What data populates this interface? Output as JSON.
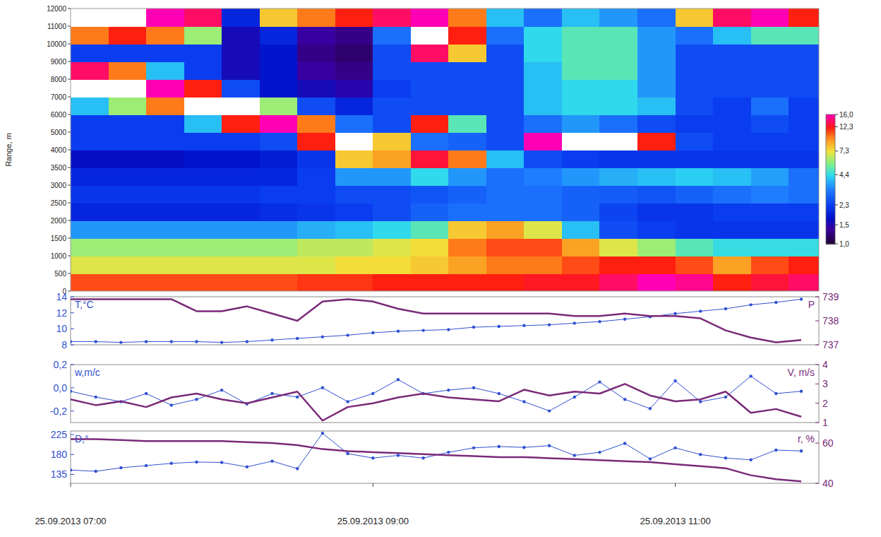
{
  "chart_data": [
    {
      "type": "heatmap",
      "y_label": "Range, m",
      "x_bins": [
        420,
        435,
        450,
        465,
        480,
        495,
        510,
        525,
        540,
        555,
        570,
        585,
        600,
        615,
        630,
        645,
        660,
        675,
        690,
        705,
        720
      ],
      "y_bins": [
        0,
        500,
        1000,
        1500,
        2000,
        2500,
        3000,
        3500,
        4000,
        5000,
        6000,
        7000,
        8000,
        9000,
        10000,
        11000,
        12000
      ],
      "z": [
        [
          11,
          11,
          11,
          11,
          11,
          11,
          11.5,
          11.5,
          12,
          12,
          12,
          12,
          12.5,
          12.5,
          14,
          16,
          15,
          12,
          13,
          14
        ],
        [
          7,
          7,
          7,
          7,
          7,
          7,
          7,
          7.5,
          7.5,
          8,
          9,
          10,
          10,
          11,
          12,
          12,
          11,
          9,
          11,
          12
        ],
        [
          6,
          6,
          6,
          6,
          6,
          6,
          6.5,
          6.5,
          7,
          7.5,
          10,
          11,
          11,
          9,
          7,
          6,
          5,
          4.5,
          4.5,
          4.5
        ],
        [
          3.5,
          3.5,
          3.5,
          3.5,
          3.5,
          3.5,
          3.8,
          4,
          4.4,
          5,
          8,
          9,
          7,
          4,
          2.5,
          2.3,
          2.2,
          2.2,
          2.2,
          2.2
        ],
        [
          2,
          2,
          2,
          2,
          2,
          2.1,
          2.2,
          2.3,
          2.5,
          2.8,
          3,
          3,
          3,
          2.8,
          2.4,
          2.2,
          2.2,
          2.3,
          2.3,
          2.3
        ],
        [
          2.2,
          2.2,
          2.2,
          2.2,
          2.2,
          2.3,
          2.3,
          2.5,
          2.5,
          2.6,
          2.8,
          3,
          3,
          2.8,
          2.7,
          2.6,
          2.8,
          3,
          3.2,
          3
        ],
        [
          2,
          2,
          2,
          2,
          2,
          2,
          2.3,
          3.5,
          3.5,
          4.4,
          3.5,
          3,
          3.2,
          3.5,
          3.8,
          4,
          4.2,
          4,
          3.6,
          3
        ],
        [
          1.7,
          1.7,
          1.7,
          1.8,
          1.8,
          1.9,
          2.2,
          8,
          9,
          13,
          10,
          4,
          2.5,
          2.3,
          2.2,
          2.2,
          2.2,
          2.2,
          2.2,
          2.2
        ],
        [
          2.3,
          2.3,
          2.3,
          2.3,
          2.3,
          2.5,
          12,
          17,
          8,
          3,
          2.8,
          2.5,
          16,
          17,
          17,
          12,
          2.5,
          2.3,
          2.3,
          2.3
        ],
        [
          2.3,
          2.3,
          2.3,
          4,
          12,
          16,
          10,
          3,
          2.5,
          12,
          5,
          2.5,
          3,
          3.5,
          3,
          2.5,
          2.3,
          2.3,
          2.5,
          2.3
        ],
        [
          4,
          6,
          10,
          17,
          17,
          6,
          2.5,
          2,
          2.5,
          2.5,
          2.5,
          2.5,
          4,
          4.4,
          4.4,
          4,
          2.5,
          2.3,
          3,
          2.3
        ],
        [
          17,
          17,
          16,
          12,
          2.5,
          1.8,
          1.6,
          1.5,
          2.3,
          2.5,
          2.5,
          2.5,
          4,
          4.4,
          4.4,
          3.5,
          2.5,
          2.5,
          2.5,
          2.5
        ],
        [
          14,
          10,
          4,
          2.3,
          1.6,
          1.8,
          1.4,
          1.3,
          2.5,
          2.5,
          2.5,
          2.5,
          4,
          5,
          5,
          3.5,
          2.5,
          2.5,
          2.5,
          2.5
        ],
        [
          2.3,
          2.3,
          2.3,
          2.3,
          1.6,
          1.8,
          1.3,
          1.2,
          2.5,
          14,
          8,
          2.5,
          4.4,
          5,
          5,
          3.5,
          2.5,
          2.5,
          2.5,
          2.5
        ],
        [
          10,
          12,
          10,
          6,
          1.6,
          2,
          1.4,
          1.3,
          3,
          17,
          12,
          3,
          4.4,
          5,
          5,
          3.5,
          3,
          4,
          5,
          5
        ],
        [
          17,
          17,
          16,
          14,
          2,
          8,
          10,
          12,
          14,
          16,
          10,
          4,
          3,
          4,
          3.5,
          3,
          8,
          14,
          16,
          12
        ]
      ],
      "xlim": [
        420,
        717
      ],
      "ylim": [
        0,
        12000
      ],
      "yticks": [
        0,
        500,
        1000,
        1500,
        2000,
        2500,
        3000,
        3500,
        4000,
        5000,
        6000,
        7000,
        8000,
        9000,
        10000,
        11000,
        12000
      ],
      "colorbar": {
        "range": [
          1.0,
          16.0
        ],
        "log": true,
        "ticks": [
          {
            "value": 16.0,
            "label": "16,0"
          },
          {
            "value": 12.3,
            "label": "12,3"
          },
          {
            "value": 7.3,
            "label": "7,3"
          },
          {
            "value": 4.4,
            "label": "4,4"
          },
          {
            "value": 2.3,
            "label": "2,3"
          },
          {
            "value": 1.5,
            "label": "1,5"
          },
          {
            "value": 1.0,
            "label": "1,0"
          }
        ]
      },
      "tick_labels": "y"
    },
    {
      "type": "line",
      "x": [
        420,
        430,
        440,
        450,
        460,
        470,
        480,
        490,
        500,
        510,
        520,
        530,
        540,
        550,
        560,
        570,
        580,
        590,
        600,
        610,
        620,
        630,
        640,
        650,
        660,
        670,
        680,
        690,
        700,
        710
      ],
      "xlim": [
        420,
        717
      ],
      "y_label": "T,°C",
      "ylim": [
        8,
        14
      ],
      "yticks": [
        8,
        10,
        12,
        14
      ],
      "y2_label": "P",
      "y2lim": [
        737,
        739
      ],
      "y2ticks": [
        737,
        738,
        739
      ],
      "tick_labels": "y",
      "series": [
        {
          "color": "#3050d0",
          "marker": "circle",
          "line_style": "solid",
          "values": [
            8.4,
            8.4,
            8.3,
            8.4,
            8.4,
            8.4,
            8.3,
            8.4,
            8.6,
            8.8,
            9.0,
            9.2,
            9.5,
            9.7,
            9.8,
            9.9,
            10.2,
            10.3,
            10.4,
            10.5,
            10.7,
            10.9,
            11.2,
            11.5,
            11.9,
            12.2,
            12.5,
            13.0,
            13.3,
            13.7
          ]
        },
        {
          "color": "#7a2a78",
          "marker": "none",
          "line_style": "solid",
          "axis": "y2",
          "values": [
            738.9,
            738.9,
            738.9,
            738.9,
            738.9,
            738.4,
            738.4,
            738.6,
            738.3,
            738.0,
            738.8,
            738.9,
            738.8,
            738.5,
            738.3,
            738.3,
            738.3,
            738.3,
            738.3,
            738.3,
            738.2,
            738.2,
            738.3,
            738.2,
            738.2,
            738.1,
            737.6,
            737.3,
            737.1,
            737.2
          ]
        }
      ]
    },
    {
      "type": "line",
      "x": [
        420,
        430,
        440,
        450,
        460,
        470,
        480,
        490,
        500,
        510,
        520,
        530,
        540,
        550,
        560,
        570,
        580,
        590,
        600,
        610,
        620,
        630,
        640,
        650,
        660,
        670,
        680,
        690,
        700,
        710
      ],
      "xlim": [
        420,
        717
      ],
      "y_label": "w,m/c",
      "ylim": [
        -0.3,
        0.2
      ],
      "yticks": [
        {
          "value": -0.2,
          "label": "-0,2"
        },
        {
          "value": 0.0,
          "label": "0,0"
        },
        {
          "value": 0.2,
          "label": "0,2"
        }
      ],
      "y2_label": "V, m/s",
      "y2lim": [
        1,
        4
      ],
      "y2ticks": [
        1,
        2,
        3,
        4
      ],
      "tick_labels": "y",
      "series": [
        {
          "color": "#3050d0",
          "marker": "circle",
          "line_style": "solid",
          "values": [
            -0.03,
            -0.08,
            -0.12,
            -0.05,
            -0.15,
            -0.1,
            -0.02,
            -0.14,
            -0.05,
            -0.08,
            0.0,
            -0.12,
            -0.05,
            0.07,
            -0.05,
            -0.02,
            0.0,
            -0.05,
            -0.12,
            -0.2,
            -0.08,
            0.05,
            -0.1,
            -0.18,
            0.06,
            -0.12,
            -0.08,
            0.1,
            -0.05,
            -0.03
          ]
        },
        {
          "color": "#7a2a78",
          "marker": "none",
          "line_style": "solid",
          "axis": "y2",
          "values": [
            2.2,
            1.9,
            2.1,
            1.8,
            2.3,
            2.5,
            2.2,
            2.0,
            2.3,
            2.6,
            1.1,
            1.8,
            2.0,
            2.3,
            2.5,
            2.3,
            2.2,
            2.1,
            2.7,
            2.4,
            2.6,
            2.5,
            3.0,
            2.4,
            2.1,
            2.2,
            2.6,
            1.5,
            1.7,
            1.3
          ]
        }
      ]
    },
    {
      "type": "line",
      "x": [
        420,
        430,
        440,
        450,
        460,
        470,
        480,
        490,
        500,
        510,
        520,
        530,
        540,
        550,
        560,
        570,
        580,
        590,
        600,
        610,
        620,
        630,
        640,
        650,
        660,
        670,
        680,
        690,
        700,
        710
      ],
      "xlim": [
        420,
        717
      ],
      "xticks": [
        {
          "value": 420,
          "label": "25.09.2013 07:00"
        },
        {
          "value": 540,
          "label": "25.09.2013 09:00"
        },
        {
          "value": 660,
          "label": "25.09.2013 11:00"
        }
      ],
      "y_label": "D,°",
      "ylim": [
        115,
        233
      ],
      "yticks": [
        135,
        180,
        225
      ],
      "y2_label": "r, %",
      "y2lim": [
        40,
        66
      ],
      "y2ticks": [
        40,
        60
      ],
      "tick_labels": true,
      "series": [
        {
          "color": "#3050d0",
          "marker": "circle",
          "line_style": "solid",
          "values": [
            145,
            142,
            150,
            155,
            160,
            163,
            162,
            152,
            165,
            148,
            228,
            182,
            172,
            178,
            172,
            185,
            195,
            198,
            196,
            200,
            178,
            185,
            205,
            170,
            195,
            180,
            172,
            168,
            190,
            188
          ]
        },
        {
          "color": "#7a2a78",
          "marker": "none",
          "line_style": "solid",
          "axis": "y2",
          "values": [
            62,
            62,
            61.5,
            61,
            61,
            61,
            61,
            60.5,
            60,
            59,
            57,
            56,
            55.5,
            55,
            54.5,
            54,
            53.5,
            53,
            53,
            52.5,
            52,
            51.5,
            51,
            50.5,
            49.5,
            48.5,
            47.5,
            44,
            42,
            41
          ]
        }
      ]
    }
  ]
}
